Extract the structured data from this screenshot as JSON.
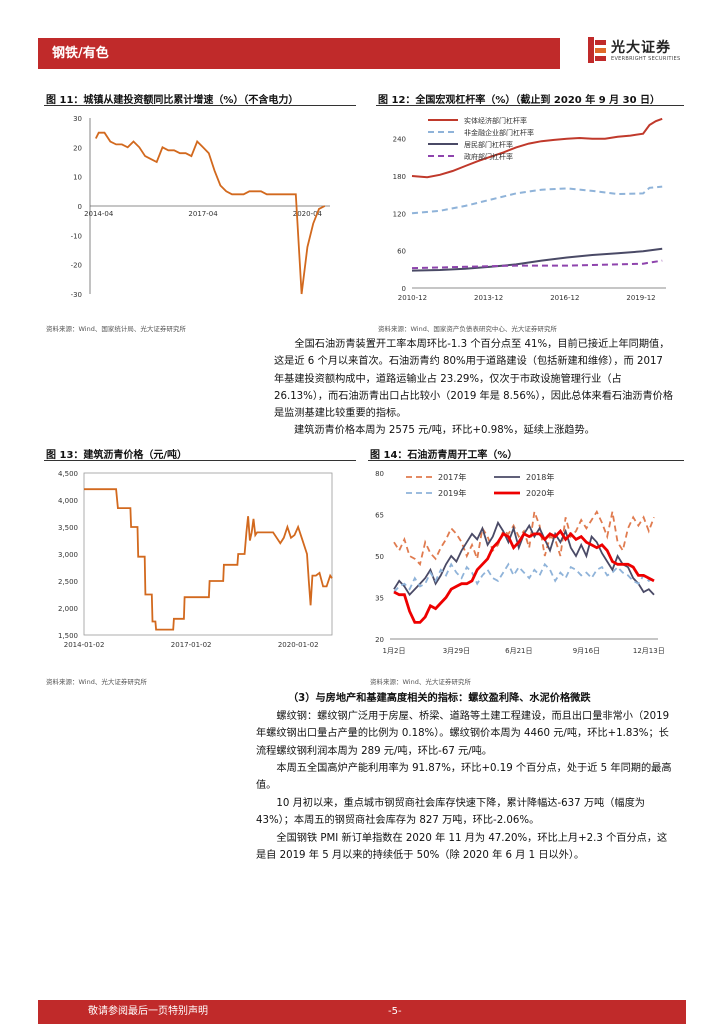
{
  "header": {
    "section": "钢铁/有色",
    "logo_cn": "光大证券",
    "logo_en": "EVERBRIGHT SECURITIES"
  },
  "figures": [
    {
      "title": "图 11：城镇从建投资额同比累计增速（%）（不含电力）",
      "source": "资料来源：Wind、国家统计局、光大证券研究所"
    },
    {
      "title": "图 12：全国宏观杠杆率（%）（截止到 2020 年 9 月 30 日）",
      "source": "资料来源：Wind、国家资产负债表研究中心、光大证券研究所"
    },
    {
      "title": "图 13：建筑沥青价格（元/吨）",
      "source": "资料来源：Wind、光大证券研究所"
    },
    {
      "title": "图 14：石油沥青周开工率（%）",
      "source": "资料来源：Wind、光大证券研究所"
    }
  ],
  "chart_data": [
    {
      "type": "line",
      "x_ticks": [
        "2014-04",
        "2017-04",
        "2020-04"
      ],
      "ylim": [
        -30,
        30
      ],
      "y_ticks": [
        30,
        20,
        10,
        0,
        -10,
        -20,
        -30
      ],
      "series": [
        {
          "color": "#d2691e",
          "x": [
            "2014-03",
            "2014-04",
            "2014-06",
            "2014-08",
            "2014-10",
            "2014-12",
            "2015-02",
            "2015-04",
            "2015-06",
            "2015-08",
            "2015-10",
            "2015-12",
            "2016-02",
            "2016-04",
            "2016-06",
            "2016-08",
            "2016-10",
            "2016-12",
            "2017-02",
            "2017-04",
            "2017-06",
            "2017-08",
            "2017-10",
            "2017-12",
            "2018-02",
            "2018-04",
            "2018-06",
            "2018-08",
            "2018-10",
            "2018-12",
            "2019-02",
            "2019-04",
            "2019-06",
            "2019-08",
            "2019-10",
            "2019-12",
            "2020-02",
            "2020-04",
            "2020-06",
            "2020-08",
            "2020-10"
          ],
          "values": [
            23,
            25,
            25,
            22,
            21,
            21,
            20,
            22,
            20,
            17,
            16,
            15,
            20,
            19,
            19,
            18,
            18,
            17,
            22,
            20,
            18,
            12,
            7,
            5,
            4,
            4,
            4,
            5,
            5,
            5,
            4,
            4,
            4,
            4,
            4,
            4,
            -30,
            -14,
            -6,
            -1,
            0
          ]
        }
      ]
    },
    {
      "type": "line",
      "x_ticks": [
        "2010-12",
        "2013-12",
        "2016-12",
        "2019-12"
      ],
      "ylim": [
        0,
        270
      ],
      "y_ticks": [
        0,
        60,
        120,
        180,
        240
      ],
      "series": [
        {
          "name": "实体经济部门杠杆率",
          "color": "#c0392b",
          "style": "solid",
          "x": [
            2010.9,
            2011.5,
            2012,
            2012.5,
            2013,
            2013.5,
            2014,
            2014.5,
            2015,
            2015.5,
            2016,
            2016.5,
            2017,
            2017.5,
            2018,
            2018.5,
            2019,
            2019.5,
            2020,
            2020.25,
            2020.5,
            2020.75
          ],
          "values": [
            180,
            178,
            182,
            188,
            196,
            204,
            211,
            218,
            226,
            232,
            236,
            238,
            240,
            241,
            240,
            240,
            243,
            245,
            248,
            262,
            268,
            272
          ]
        },
        {
          "name": "非金融企业部门杠杆率",
          "color": "#8fb3d9",
          "style": "dashed",
          "x": [
            2010.9,
            2012,
            2013,
            2014,
            2015,
            2016,
            2017,
            2018,
            2019,
            2020,
            2020.25,
            2020.75
          ],
          "values": [
            120,
            124,
            132,
            142,
            152,
            158,
            160,
            156,
            151,
            152,
            161,
            163
          ]
        },
        {
          "name": "居民部门杠杆率",
          "color": "#4a4a66",
          "style": "solid",
          "x": [
            2010.9,
            2012,
            2013,
            2014,
            2015,
            2016,
            2017,
            2018,
            2019,
            2020,
            2020.75
          ],
          "values": [
            28,
            29,
            31,
            34,
            38,
            44,
            49,
            53,
            56,
            59,
            63
          ]
        },
        {
          "name": "政府部门杠杆率",
          "color": "#8e44ad",
          "style": "dashed",
          "x": [
            2010.9,
            2012,
            2013,
            2014,
            2015,
            2016,
            2017,
            2018,
            2019,
            2020,
            2020.75
          ],
          "values": [
            32,
            33,
            34,
            35,
            36,
            36,
            36,
            37,
            38,
            39,
            44
          ]
        }
      ]
    },
    {
      "type": "line",
      "x_ticks": [
        "2014-01-02",
        "2017-01-02",
        "2020-01-02"
      ],
      "ylim": [
        1500,
        4500
      ],
      "y_ticks": [
        "4,500",
        "4,000",
        "3,500",
        "3,000",
        "2,500",
        "2,000",
        "1,500"
      ],
      "series": [
        {
          "color": "#d2691e",
          "x": [
            2014.0,
            2014.9,
            2014.95,
            2015.1,
            2015.3,
            2015.32,
            2015.5,
            2015.52,
            2015.7,
            2015.72,
            2015.9,
            2015.92,
            2016.0,
            2016.02,
            2016.5,
            2016.52,
            2016.8,
            2016.82,
            2017.5,
            2017.52,
            2017.9,
            2017.92,
            2018.3,
            2018.32,
            2018.5,
            2018.55,
            2018.6,
            2018.65,
            2018.7,
            2018.75,
            2018.8,
            2018.85,
            2019.0,
            2019.3,
            2019.5,
            2019.6,
            2019.7,
            2019.8,
            2019.9,
            2020.0,
            2020.1,
            2020.25,
            2020.3,
            2020.35,
            2020.4,
            2020.5,
            2020.6,
            2020.7,
            2020.8,
            2020.9,
            2020.95
          ],
          "values": [
            4200,
            4200,
            3850,
            3850,
            3850,
            3500,
            3500,
            2950,
            2950,
            2250,
            2250,
            1750,
            1750,
            1600,
            1600,
            1800,
            1800,
            2200,
            2200,
            2500,
            2500,
            2800,
            2800,
            3000,
            3000,
            3400,
            3700,
            3250,
            3400,
            3650,
            3350,
            3400,
            3400,
            3400,
            3200,
            3300,
            3500,
            3300,
            3350,
            3500,
            3300,
            3000,
            2500,
            2050,
            2600,
            2600,
            2650,
            2400,
            2400,
            2600,
            2550
          ]
        }
      ]
    },
    {
      "type": "line",
      "x_ticks": [
        "1月2日",
        "3月29日",
        "6月21日",
        "9月16日",
        "12月13日"
      ],
      "ylim": [
        20,
        80
      ],
      "y_ticks": [
        80,
        65,
        50,
        35,
        20
      ],
      "series": [
        {
          "name": "2017年",
          "color": "#e07b4f",
          "style": "dashed",
          "values": [
            55,
            52,
            56,
            50,
            49,
            47,
            55,
            51,
            49,
            53,
            56,
            60,
            58,
            55,
            50,
            54,
            49,
            60,
            57,
            52,
            54,
            59,
            58,
            61,
            57,
            59,
            53,
            66,
            61,
            50,
            57,
            56,
            50,
            64,
            57,
            59,
            63,
            60,
            63,
            66,
            62,
            57,
            66,
            55,
            52,
            60,
            64,
            61,
            64,
            59,
            64
          ]
        },
        {
          "name": "2018年",
          "color": "#4a4a66",
          "style": "solid",
          "values": [
            38,
            41,
            39,
            36,
            38,
            40,
            42,
            45,
            40,
            43,
            47,
            50,
            48,
            52,
            55,
            58,
            56,
            60,
            54,
            57,
            62,
            59,
            55,
            60,
            53,
            58,
            61,
            57,
            60,
            56,
            52,
            58,
            55,
            59,
            53,
            50,
            54,
            50,
            57,
            55,
            51,
            48,
            45,
            50,
            47,
            46,
            42,
            40,
            37,
            38,
            36
          ]
        },
        {
          "name": "2019年",
          "color": "#8fb3d9",
          "style": "dashed",
          "values": [
            37,
            39,
            40,
            38,
            42,
            39,
            40,
            44,
            41,
            45,
            43,
            47,
            44,
            42,
            46,
            44,
            40,
            43,
            45,
            42,
            41,
            44,
            47,
            43,
            46,
            44,
            42,
            45,
            43,
            47,
            45,
            41,
            44,
            42,
            46,
            45,
            43,
            44,
            42,
            45,
            46,
            43,
            44,
            46,
            44,
            43,
            41,
            40,
            43,
            41,
            42
          ]
        },
        {
          "name": "2020年",
          "color": "#ee0000",
          "style": "solid",
          "values": [
            37,
            36,
            36,
            30,
            26,
            26,
            28,
            32,
            31,
            33,
            35,
            38,
            39,
            40,
            40,
            41,
            45,
            47,
            49,
            53,
            55,
            58,
            57,
            53,
            55,
            58,
            57,
            58,
            58,
            56,
            58,
            57,
            59,
            56,
            58,
            56,
            57,
            55,
            54,
            53,
            54,
            52,
            48,
            47,
            47,
            47,
            46,
            43,
            43,
            42,
            41
          ]
        }
      ]
    }
  ],
  "paragraphs": [
    "全国石油沥青装置开工率本周环比-1.3 个百分点至 41%，目前已接近上年同期值，这是近 6 个月以来首次。石油沥青约 80%用于道路建设（包括新建和维修），而 2017 年基建投资额构成中，道路运输业占 23.29%，仅次于市政设施管理行业（占 26.13%），而石油沥青出口占比较小（2019 年是 8.56%），因此总体来看石油沥青价格是监测基建比较重要的指标。",
    "建筑沥青价格本周为 2575 元/吨，环比+0.98%，延续上涨趋势。"
  ],
  "section3": {
    "heading": "（3）与房地产和基建高度相关的指标：螺纹盈利降、水泥价格微跌",
    "p1": "螺纹钢：螺纹钢广泛用于房屋、桥梁、道路等土建工程建设，而且出口量非常小（2019 年螺纹钢出口量占产量的比例为 0.18%）。螺纹钢价本周为 4460 元/吨，环比+1.83%；长流程螺纹钢利润本周为 289 元/吨，环比-67 元/吨。",
    "p2": "本周五全国高炉产能利用率为 91.87%，环比+0.19 个百分点，处于近 5 年同期的最高值。",
    "p3": "10 月初以来，重点城市钢贸商社会库存快速下降，累计降幅达-637 万吨（幅度为 43%）；本周五的钢贸商社会库存为 827 万吨，环比-2.06%。",
    "p4": "全国钢铁 PMI 新订单指数在 2020 年 11 月为 47.20%，环比上月+2.3 个百分点，这是自 2019 年 5 月以来的持续低于 50%（除 2020 年 6 月 1 日以外）。"
  },
  "footer": {
    "disclaimer": "敬请参阅最后一页特别声明",
    "page": "-5-"
  }
}
